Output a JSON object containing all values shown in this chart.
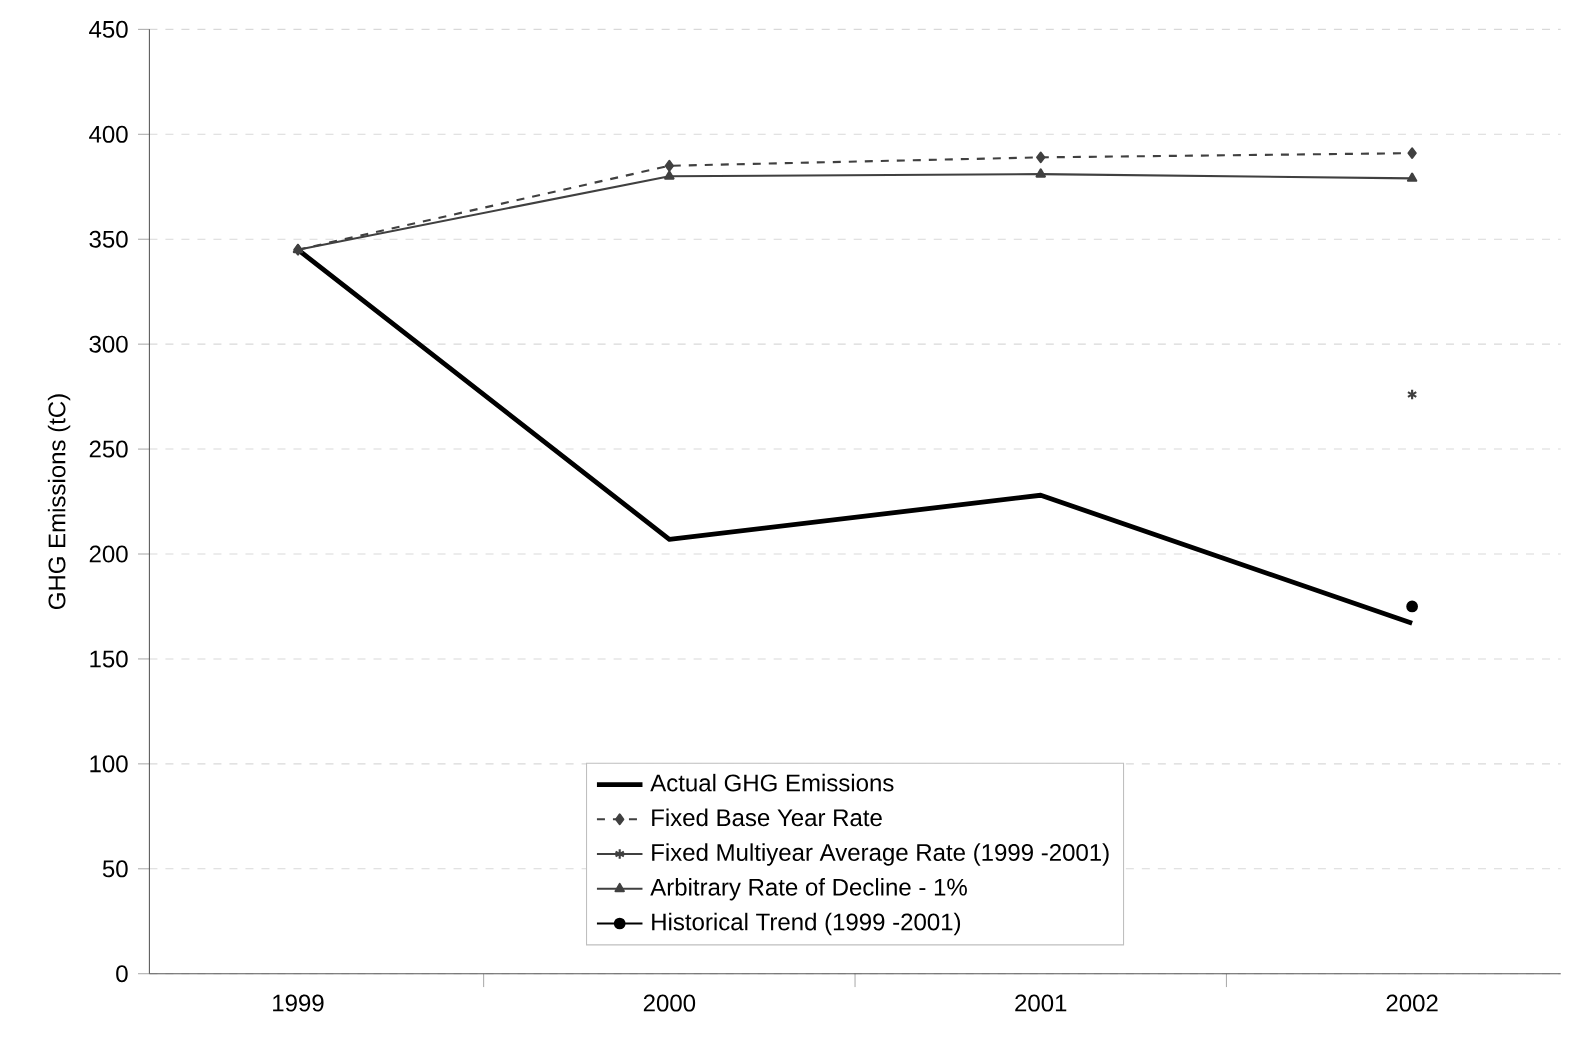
{
  "chart_data": {
    "type": "line",
    "ylabel": "GHG Emissions (tC)",
    "categories": [
      "1999",
      "2000",
      "2001",
      "2002"
    ],
    "series": [
      {
        "name": "Actual GHG Emissions",
        "color": "#000000",
        "values": [
          345,
          207,
          228,
          167
        ],
        "marker": "none",
        "line_style": "solid"
      },
      {
        "name": "Fixed Base Year Rate",
        "color": "#404040",
        "values": [
          345,
          385,
          389,
          391
        ],
        "marker": "diamond",
        "line_style": "dashed"
      },
      {
        "name": "Fixed Multiyear Average Rate (1999 -2001)",
        "color": "#404040",
        "values": [
          null,
          null,
          null,
          276
        ],
        "marker": "cross",
        "line_style": "solid"
      },
      {
        "name": "Arbitrary Rate of Decline - 1%",
        "color": "#404040",
        "values": [
          345,
          380,
          381,
          379
        ],
        "marker": "triangle",
        "line_style": "solid"
      },
      {
        "name": "Historical Trend (1999 -2001)",
        "color": "#000000",
        "values": [
          null,
          null,
          null,
          175
        ],
        "marker": "circle",
        "line_style": "solid"
      }
    ],
    "ylim": [
      0,
      450
    ],
    "yticks": [
      0,
      50,
      100,
      150,
      200,
      250,
      300,
      350,
      400,
      450
    ],
    "grid": "y",
    "legend": "bottom"
  }
}
